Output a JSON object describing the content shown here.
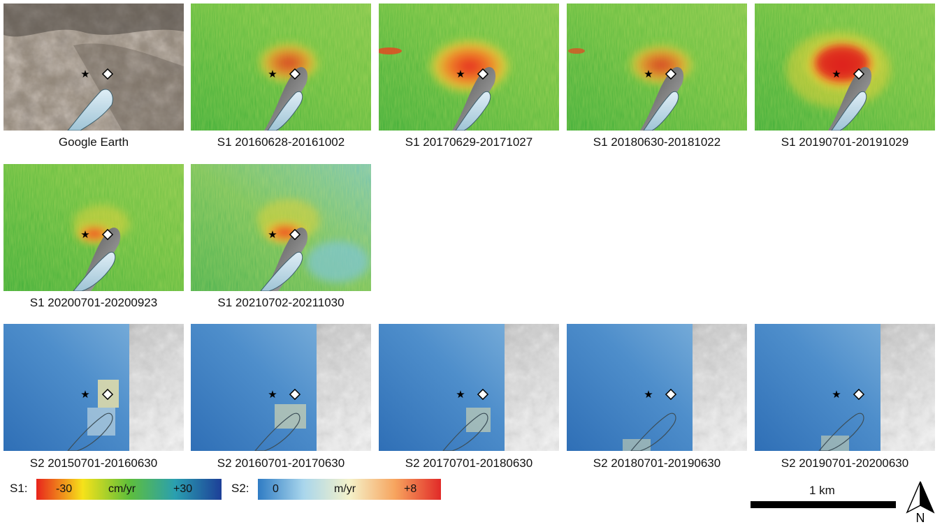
{
  "panels": [
    {
      "caption": "Google Earth"
    },
    {
      "caption": "S1 20160628-20161002"
    },
    {
      "caption": "S1 20170629-20171027"
    },
    {
      "caption": "S1 20180630-20181022"
    },
    {
      "caption": "S1 20190701-20191029"
    },
    {
      "caption": "S1 20200701-20200923"
    },
    {
      "caption": "S1 20210702-20211030"
    },
    {
      "caption": "S2 20150701-20160630"
    },
    {
      "caption": "S2 20160701-20170630"
    },
    {
      "caption": "S2 20170701-20180630"
    },
    {
      "caption": "S2 20180701-20190630"
    },
    {
      "caption": "S2 20190701-20200630"
    }
  ],
  "legend": {
    "s1": {
      "label": "S1:",
      "min": "-30",
      "unit": "cm/yr",
      "max": "+30",
      "colors": [
        "#e8241c",
        "#f6e21a",
        "#5fbf3a",
        "#2a9fb0",
        "#1d3f98"
      ]
    },
    "s2": {
      "label": "S2:",
      "min": "0",
      "unit": "m/yr",
      "max": "+8",
      "colors": [
        "#2f7cc4",
        "#a9d6ec",
        "#f4f1c9",
        "#f7a45e",
        "#e12a28"
      ]
    }
  },
  "scale_bar": {
    "label": "1 km"
  },
  "north_arrow": {
    "label": "N"
  },
  "markers": {
    "star": "★",
    "diamond": "◇"
  }
}
